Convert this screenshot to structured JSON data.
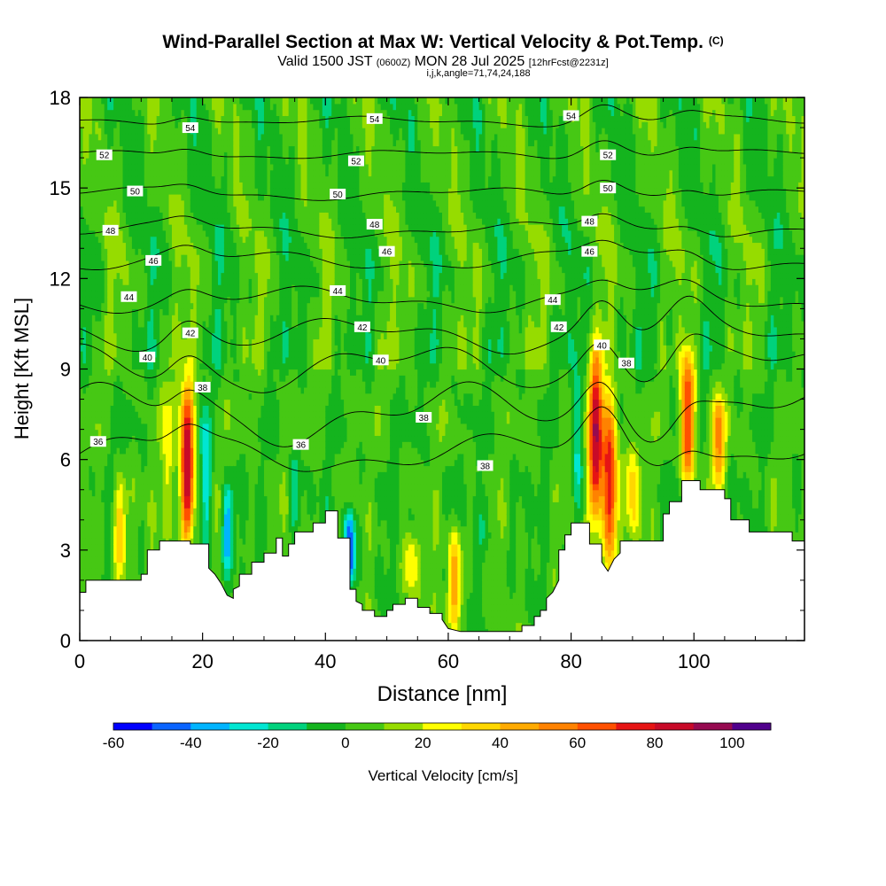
{
  "title": {
    "main": "Wind-Parallel Section at Max W: Vertical Velocity & Pot.Temp.",
    "copyright": "(C)",
    "valid": "Valid 1500 JST",
    "valid_utc": "(0600Z)",
    "date": "MON 28 Jul 2025",
    "fcst": "[12hrFcst@2231z]",
    "indices": "i,j,k,angle=71,74,24,188"
  },
  "chart_data": {
    "type": "heatmap",
    "title": "Wind-Parallel Section at Max W: Vertical Velocity & Pot.Temp.",
    "xlabel": "Distance [nm]",
    "ylabel": "Height [Kft MSL]",
    "xlim": [
      0,
      118
    ],
    "ylim": [
      0,
      18
    ],
    "x_ticks": [
      "0",
      "20",
      "40",
      "60",
      "80",
      "100"
    ],
    "x_tick_values": [
      0,
      20,
      40,
      60,
      80,
      100
    ],
    "y_ticks": [
      "0",
      "3",
      "6",
      "9",
      "12",
      "15",
      "18"
    ],
    "y_tick_values": [
      0,
      3,
      6,
      9,
      12,
      15,
      18
    ],
    "colorbar": {
      "label": "Vertical Velocity [cm/s]",
      "tick_labels": [
        "-60",
        "-40",
        "-20",
        "0",
        "20",
        "40",
        "60",
        "80",
        "100"
      ],
      "tick_values": [
        -60,
        -40,
        -20,
        0,
        20,
        40,
        60,
        80,
        100
      ],
      "range": [
        -60,
        110
      ],
      "colors": [
        "#0000ff",
        "#0a64ff",
        "#00b4ff",
        "#00e6d2",
        "#00d27d",
        "#14b41e",
        "#46c814",
        "#96dc00",
        "#ffff00",
        "#ffd700",
        "#ffaa00",
        "#ff8200",
        "#ff5000",
        "#e61414",
        "#c80a28",
        "#960a50",
        "#50008c"
      ]
    },
    "terrain": [
      [
        0,
        1.6
      ],
      [
        1,
        1.6
      ],
      [
        1,
        2
      ],
      [
        10,
        2
      ],
      [
        10,
        2.2
      ],
      [
        11,
        2.2
      ],
      [
        11,
        3
      ],
      [
        13,
        3
      ],
      [
        13,
        3.3
      ],
      [
        18,
        3.3
      ],
      [
        18,
        3.2
      ],
      [
        21,
        3.2
      ],
      [
        21,
        2.4
      ],
      [
        22,
        2.2
      ],
      [
        23,
        1.9
      ],
      [
        24,
        1.5
      ],
      [
        25,
        1.4
      ],
      [
        25,
        1.7
      ],
      [
        26,
        1.8
      ],
      [
        26,
        2.2
      ],
      [
        28,
        2.2
      ],
      [
        28,
        2.6
      ],
      [
        30,
        2.6
      ],
      [
        30,
        2.9
      ],
      [
        32,
        2.9
      ],
      [
        32,
        3.4
      ],
      [
        33,
        3.4
      ],
      [
        33,
        2.8
      ],
      [
        34,
        2.8
      ],
      [
        34,
        3.2
      ],
      [
        35,
        3.2
      ],
      [
        35,
        3.6
      ],
      [
        38,
        3.6
      ],
      [
        38,
        3.9
      ],
      [
        40,
        3.9
      ],
      [
        40,
        4.3
      ],
      [
        42,
        4.3
      ],
      [
        42,
        3.4
      ],
      [
        44,
        3.4
      ],
      [
        44,
        1.7
      ],
      [
        45,
        1.7
      ],
      [
        45,
        1.3
      ],
      [
        46,
        1.2
      ],
      [
        46,
        1
      ],
      [
        48,
        1
      ],
      [
        48,
        0.8
      ],
      [
        50,
        0.8
      ],
      [
        50,
        1
      ],
      [
        51,
        1
      ],
      [
        51,
        1.2
      ],
      [
        53,
        1.2
      ],
      [
        53,
        1.4
      ],
      [
        55,
        1.4
      ],
      [
        55,
        1.1
      ],
      [
        57,
        1.1
      ],
      [
        57,
        0.9
      ],
      [
        59,
        0.9
      ],
      [
        59,
        0.7
      ],
      [
        60,
        0.4
      ],
      [
        62,
        0.3
      ],
      [
        72,
        0.3
      ],
      [
        72,
        0.5
      ],
      [
        74,
        0.5
      ],
      [
        74,
        0.8
      ],
      [
        75,
        0.8
      ],
      [
        75,
        1
      ],
      [
        76,
        1
      ],
      [
        76,
        1.4
      ],
      [
        77,
        1.6
      ],
      [
        78,
        2
      ],
      [
        78,
        3
      ],
      [
        79,
        3
      ],
      [
        79,
        3.5
      ],
      [
        80,
        3.5
      ],
      [
        80,
        3.9
      ],
      [
        83,
        3.9
      ],
      [
        83,
        3.2
      ],
      [
        85,
        3.2
      ],
      [
        85,
        2.6
      ],
      [
        86,
        2.3
      ],
      [
        87,
        2.7
      ],
      [
        88,
        2.9
      ],
      [
        88,
        3.3
      ],
      [
        95,
        3.3
      ],
      [
        95,
        4.2
      ],
      [
        96,
        4.2
      ],
      [
        96,
        4.6
      ],
      [
        98,
        4.6
      ],
      [
        98,
        5.3
      ],
      [
        101,
        5.3
      ],
      [
        101,
        5
      ],
      [
        105,
        5
      ],
      [
        105,
        4.7
      ],
      [
        106,
        4.7
      ],
      [
        106,
        4
      ],
      [
        109,
        4
      ],
      [
        109,
        3.6
      ],
      [
        116,
        3.6
      ],
      [
        116,
        3.3
      ],
      [
        118,
        3.3
      ]
    ],
    "theta_contours": [
      {
        "label": "36",
        "base": 6.2,
        "amp": 0.8,
        "labels_at": [
          [
            3,
            6.6
          ],
          [
            36,
            6.5
          ]
        ]
      },
      {
        "label": "38",
        "base": 7.5,
        "amp": 1.2,
        "labels_at": [
          [
            20,
            8.4
          ],
          [
            56,
            7.4
          ],
          [
            66,
            5.8
          ],
          [
            89,
            9.2
          ]
        ]
      },
      {
        "label": "40",
        "base": 9.0,
        "amp": 1.0,
        "labels_at": [
          [
            11,
            9.4
          ],
          [
            49,
            9.3
          ],
          [
            85,
            9.8
          ]
        ]
      },
      {
        "label": "42",
        "base": 10.1,
        "amp": 0.7,
        "labels_at": [
          [
            18,
            10.2
          ],
          [
            46,
            10.4
          ],
          [
            78,
            10.4
          ]
        ]
      },
      {
        "label": "44",
        "base": 11.3,
        "amp": 0.5,
        "labels_at": [
          [
            8,
            11.4
          ],
          [
            42,
            11.6
          ],
          [
            77,
            11.3
          ]
        ]
      },
      {
        "label": "46",
        "base": 12.6,
        "amp": 0.4,
        "labels_at": [
          [
            12,
            12.6
          ],
          [
            50,
            12.9
          ],
          [
            83,
            12.9
          ]
        ]
      },
      {
        "label": "48",
        "base": 13.6,
        "amp": 0.3,
        "labels_at": [
          [
            5,
            13.6
          ],
          [
            48,
            13.8
          ],
          [
            83,
            13.9
          ]
        ]
      },
      {
        "label": "50",
        "base": 14.8,
        "amp": 0.25,
        "labels_at": [
          [
            9,
            14.9
          ],
          [
            42,
            14.8
          ],
          [
            86,
            15
          ]
        ]
      },
      {
        "label": "52",
        "base": 16.1,
        "amp": 0.2,
        "labels_at": [
          [
            4,
            16.1
          ],
          [
            45,
            15.9
          ],
          [
            86,
            16.1
          ]
        ]
      },
      {
        "label": "54",
        "base": 17.2,
        "amp": 0.2,
        "labels_at": [
          [
            18,
            17
          ],
          [
            48,
            17.3
          ],
          [
            80,
            17.4
          ]
        ]
      }
    ],
    "updrafts": [
      {
        "x": 17.5,
        "y0": 3.3,
        "y1": 8.6,
        "w_max": 90
      },
      {
        "x": 84,
        "y0": 3.9,
        "y1": 9.4,
        "w_max": 85
      },
      {
        "x": 86.3,
        "y0": 2.4,
        "y1": 8.2,
        "w_max": 80
      },
      {
        "x": 99,
        "y0": 5.3,
        "y1": 9.6,
        "w_max": 70
      },
      {
        "x": 104,
        "y0": 5,
        "y1": 8.2,
        "w_max": 45
      },
      {
        "x": 61,
        "y0": 0.4,
        "y1": 3.6,
        "w_max": 45
      },
      {
        "x": 6.5,
        "y0": 2,
        "y1": 5.4,
        "w_max": 35
      },
      {
        "x": 54,
        "y0": 1.4,
        "y1": 3.6,
        "w_max": 30
      },
      {
        "x": 90,
        "y0": 3.3,
        "y1": 6.6,
        "w_max": 30
      },
      {
        "x": 14.5,
        "y0": 3.3,
        "y1": 8.6,
        "w_max": 20
      }
    ],
    "downdrafts": [
      {
        "x": 44,
        "y0": 1.8,
        "y1": 4.4,
        "w_min": -55
      },
      {
        "x": 24,
        "y0": 2.2,
        "y1": 5.2,
        "w_min": -38
      },
      {
        "x": 20.5,
        "y0": 3.2,
        "y1": 7.6,
        "w_min": -28
      },
      {
        "x": 35,
        "y0": 3.6,
        "y1": 6.2,
        "w_min": -20
      },
      {
        "x": 81,
        "y0": 4,
        "y1": 9.2,
        "w_min": -22
      },
      {
        "x": 66,
        "y0": 2.8,
        "y1": 5.2,
        "w_min": -12
      },
      {
        "x": 96,
        "y0": 9.5,
        "y1": 11,
        "w_min": -15
      }
    ]
  }
}
